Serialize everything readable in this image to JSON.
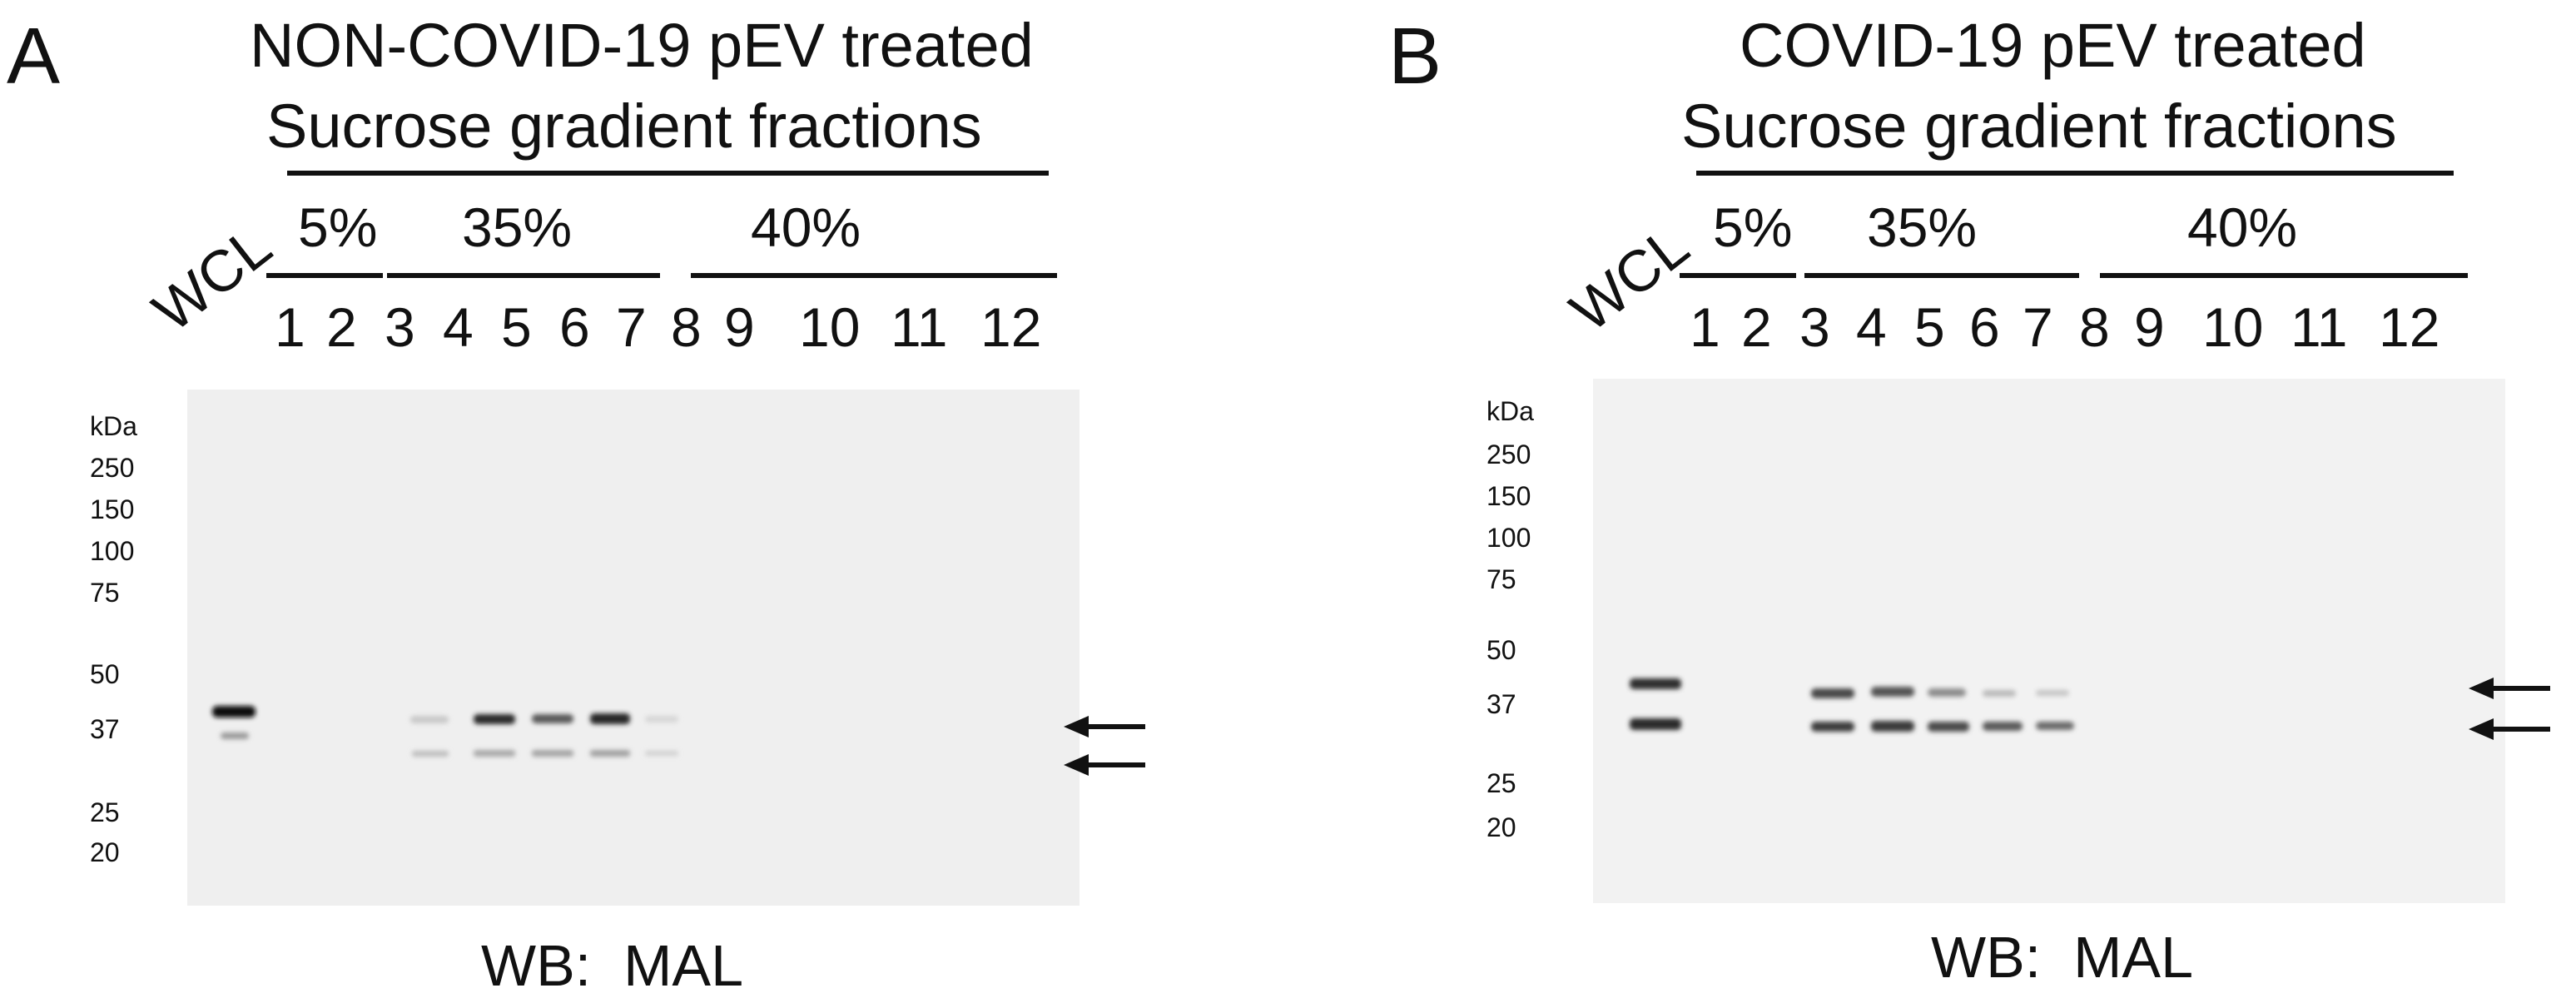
{
  "panels": [
    {
      "letter": "A",
      "title_line1": "NON-COVID-19 pEV treated",
      "title_line2": "Sucrose gradient fractions",
      "groups": [
        "5%",
        "35%",
        "40%"
      ],
      "wcl_label": "WCL",
      "lanes": [
        "1",
        "2",
        "3",
        "4",
        "5",
        "6",
        "7",
        "8",
        "9",
        "10",
        "11",
        "12"
      ],
      "mw_unit": "kDa",
      "mw_markers": [
        "250",
        "150",
        "100",
        "75",
        "50",
        "37",
        "25",
        "20"
      ],
      "footer": "WB:  MAL",
      "arrow_count": 2
    },
    {
      "letter": "B",
      "title_line1": "COVID-19 pEV treated",
      "title_line2": "Sucrose gradient fractions",
      "groups": [
        "5%",
        "35%",
        "40%"
      ],
      "wcl_label": "WCL",
      "lanes": [
        "1",
        "2",
        "3",
        "4",
        "5",
        "6",
        "7",
        "8",
        "9",
        "10",
        "11",
        "12"
      ],
      "mw_unit": "kDa",
      "mw_markers": [
        "250",
        "150",
        "100",
        "75",
        "50",
        "37",
        "25",
        "20"
      ],
      "footer": "WB:  MAL",
      "arrow_count": 2
    }
  ]
}
